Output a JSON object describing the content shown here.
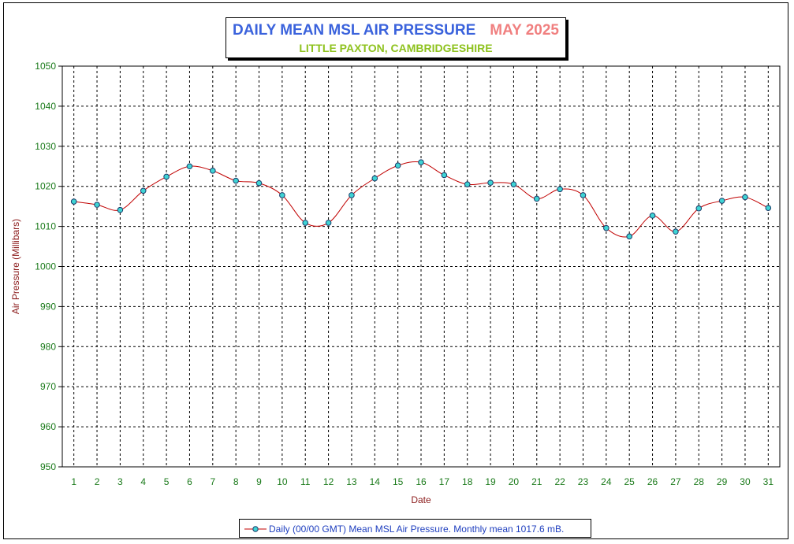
{
  "title": {
    "main": "DAILY MEAN MSL AIR PRESSURE",
    "month": "MAY 2025",
    "subtitle": "LITTLE PAXTON, CAMBRIDGESHIRE"
  },
  "colors": {
    "title": "#3a62dc",
    "month": "#f07f7f",
    "subtitle": "#8ec21e",
    "line": "#c00000",
    "marker_fill": "#3fd4d4",
    "tick_labels": "#1a7a1a",
    "axis_title": "#8b1a1a",
    "legend_text": "#1f3fbf"
  },
  "chart_data": {
    "type": "line",
    "xlabel": "Date",
    "ylabel": "Air Pressure (Millibars)",
    "ylim": [
      950,
      1050
    ],
    "yticks": [
      950,
      960,
      970,
      980,
      990,
      1000,
      1010,
      1020,
      1030,
      1040,
      1050
    ],
    "xticks": [
      "1",
      "2",
      "3",
      "4",
      "5",
      "6",
      "7",
      "8",
      "9",
      "10",
      "11",
      "12",
      "13",
      "14",
      "15",
      "16",
      "17",
      "18",
      "19",
      "20",
      "21",
      "22",
      "23",
      "24",
      "25",
      "26",
      "27",
      "28",
      "29",
      "30",
      "31"
    ],
    "grid": true,
    "legend_position": "bottom-center",
    "series": [
      {
        "name": "Daily (00/00 GMT) Mean MSL Air Pressure. Monthly mean 1017.6 mB.",
        "x": [
          1,
          2,
          3,
          4,
          5,
          6,
          7,
          8,
          9,
          10,
          11,
          12,
          13,
          14,
          15,
          16,
          17,
          18,
          19,
          20,
          21,
          22,
          23,
          24,
          25,
          26,
          27,
          28,
          29,
          30,
          31
        ],
        "values": [
          1016.2,
          1015.4,
          1014.1,
          1018.9,
          1022.4,
          1025.0,
          1023.9,
          1021.4,
          1020.8,
          1017.8,
          1010.9,
          1010.9,
          1017.8,
          1022.0,
          1025.2,
          1026.0,
          1022.8,
          1020.5,
          1020.9,
          1020.5,
          1016.9,
          1019.3,
          1017.8,
          1009.6,
          1007.5,
          1012.7,
          1008.7,
          1014.5,
          1016.4,
          1017.3,
          1014.6
        ]
      }
    ]
  }
}
